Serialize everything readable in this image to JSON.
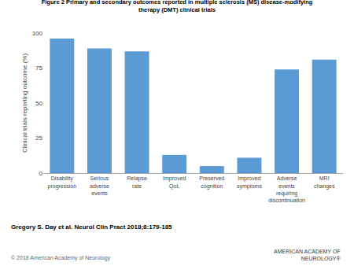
{
  "chart_data": {
    "type": "bar",
    "title": "Figure 2 Primary and secondary outcomes reported in multiple sclerosis (MS) disease-modifying\ntherapy (DMT) clinical trials",
    "y_label": "Clinical trials reporting outcome (%)",
    "categories": [
      "Disability\nprogression",
      "Serious\nadverse\nevents",
      "Relapse\nrate",
      "Improved\nQoL",
      "Preserved\ncognition",
      "Improved\nsymptoms",
      "Adverse\nevents\nrequiring\ndiscontinuation",
      "MRI\nchanges"
    ],
    "values": [
      96,
      89,
      87,
      13,
      5,
      11,
      74,
      81
    ],
    "color": "#5B9BD5",
    "ylim": [
      0,
      100
    ],
    "yticks": [
      0,
      25,
      50,
      75,
      100
    ],
    "grid": false,
    "annotations": [
      "Gregory S. Day et al. Neurol Clin Pract 2018;8:179-185",
      "© 2018 American Academy of Neurology",
      "AMERICAN ACADEMY OF\nNEUROLOGY®"
    ]
  }
}
